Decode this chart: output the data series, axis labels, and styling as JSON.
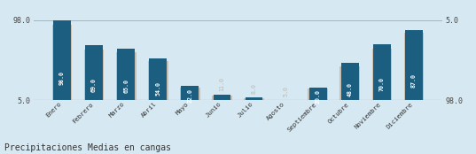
{
  "categories": [
    "Enero",
    "Febrero",
    "Marzo",
    "Abril",
    "Mayo",
    "Junio",
    "Julio",
    "Agosto",
    "Septiembre",
    "Octubre",
    "Noviembre",
    "Diciembre"
  ],
  "values_dark": [
    98.0,
    69.0,
    65.0,
    54.0,
    22.0,
    11.0,
    8.0,
    5.0,
    20.0,
    48.0,
    70.0,
    87.0
  ],
  "values_light": [
    93.0,
    64.0,
    61.0,
    50.0,
    20.0,
    10.0,
    7.5,
    4.8,
    18.0,
    44.0,
    65.0,
    83.0
  ],
  "bar_color_dark": "#1b5e80",
  "bar_color_light": "#c8bfb0",
  "background_color": "#d6e8f2",
  "text_color_inside": "#ffffff",
  "text_color_outside": "#c0b8a8",
  "ylim_min": 5.0,
  "ylim_max": 98.0,
  "title": "Precipitaciones Medias en cangas",
  "title_fontsize": 7.0,
  "label_fontsize": 5.2,
  "tick_fontsize": 6.0,
  "bar_width": 0.55,
  "value_fontsize": 4.8,
  "inside_threshold": 15.0
}
